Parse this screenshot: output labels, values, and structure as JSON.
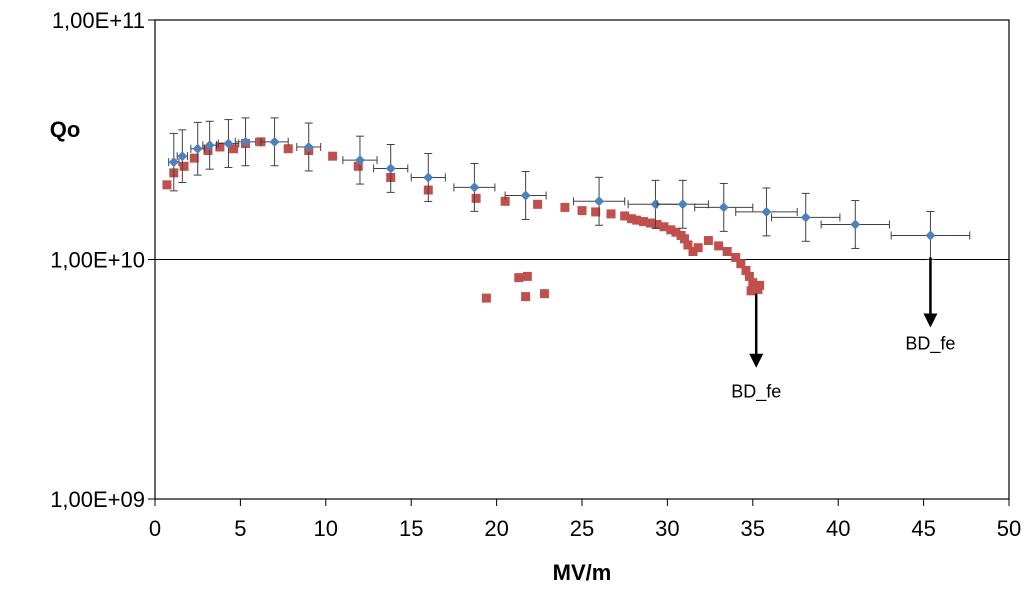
{
  "chart_data": {
    "type": "scatter",
    "xlabel": "MV/m",
    "ylabel": "Qo",
    "xlim": [
      0,
      50
    ],
    "ylim": [
      1000000000.0,
      100000000000.0
    ],
    "y_scale": "log",
    "x_ticks": [
      0,
      5,
      10,
      15,
      20,
      25,
      30,
      35,
      40,
      45,
      50
    ],
    "y_ticks": [
      1000000000.0,
      10000000000.0,
      100000000000.0
    ],
    "y_tick_labels": [
      "1,00E+09",
      "1,00E+10",
      "1,00E+11"
    ],
    "reference_line_y": 10000000000.0,
    "grid": false,
    "legend": "none",
    "series": [
      {
        "marker": "square",
        "color": "#c0504d",
        "x": [
          0.7,
          1.1,
          1.7,
          2.3,
          3.1,
          3.8,
          4.6,
          5.3,
          6.2,
          7.8,
          9.0,
          10.4,
          11.9,
          13.8,
          16.0,
          18.8,
          19.4,
          20.5,
          21.3,
          21.8,
          21.7,
          22.4,
          22.8,
          24.0,
          25.0,
          25.8,
          26.7,
          27.5,
          27.9,
          28.2,
          28.6,
          29.0,
          29.4,
          29.8,
          30.2,
          30.5,
          30.8,
          31.0,
          31.2,
          31.5,
          31.8,
          32.4,
          33.0,
          33.5,
          34.0,
          34.3,
          34.6,
          34.8,
          35.0,
          35.2,
          35.4,
          34.9,
          35.3
        ],
        "y": [
          20500000000.0,
          23000000000.0,
          24500000000.0,
          26500000000.0,
          28500000000.0,
          29500000000.0,
          29000000000.0,
          30500000000.0,
          31000000000.0,
          29000000000.0,
          28500000000.0,
          27000000000.0,
          24500000000.0,
          22000000000.0,
          19500000000.0,
          18000000000.0,
          6900000000.0,
          17500000000.0,
          8400000000.0,
          8500000000.0,
          7000000000.0,
          17000000000.0,
          7200000000.0,
          16500000000.0,
          16000000000.0,
          15800000000.0,
          15500000000.0,
          15200000000.0,
          14800000000.0,
          14600000000.0,
          14400000000.0,
          14200000000.0,
          14000000000.0,
          13700000000.0,
          13300000000.0,
          13000000000.0,
          12600000000.0,
          12200000000.0,
          11500000000.0,
          10800000000.0,
          11200000000.0,
          12000000000.0,
          11400000000.0,
          10800000000.0,
          10200000000.0,
          9600000000.0,
          9000000000.0,
          8500000000.0,
          8000000000.0,
          7600000000.0,
          7800000000.0,
          7400000000.0,
          7500000000.0
        ]
      },
      {
        "marker": "diamond",
        "color": "#4f81bd",
        "error_bar_color": "#404040",
        "x": [
          1.1,
          1.6,
          2.5,
          3.2,
          4.3,
          5.3,
          7.0,
          9.0,
          12.0,
          13.8,
          16.0,
          18.7,
          21.7,
          26.0,
          29.3,
          30.9,
          33.3,
          35.8,
          38.1,
          41.0,
          45.4
        ],
        "y": [
          25500000000.0,
          27000000000.0,
          29000000000.0,
          30000000000.0,
          30500000000.0,
          31000000000.0,
          31000000000.0,
          29500000000.0,
          26000000000.0,
          24000000000.0,
          22000000000.0,
          20000000000.0,
          18500000000.0,
          17500000000.0,
          17000000000.0,
          17000000000.0,
          16500000000.0,
          15800000000.0,
          15000000000.0,
          14000000000.0,
          12600000000.0
        ],
        "x_err": [
          0.3,
          0.3,
          0.4,
          0.4,
          0.6,
          0.6,
          0.8,
          0.7,
          1.0,
          1.0,
          1.0,
          1.2,
          1.2,
          1.5,
          1.6,
          1.5,
          1.7,
          1.8,
          2.0,
          2.0,
          2.3
        ],
        "y_err": [
          0.12,
          0.11,
          0.11,
          0.1,
          0.1,
          0.1,
          0.1,
          0.1,
          0.1,
          0.1,
          0.1,
          0.1,
          0.1,
          0.1,
          0.1,
          0.1,
          0.1,
          0.1,
          0.1,
          0.1,
          0.1
        ]
      }
    ],
    "annotations": [
      {
        "text": "BD_fe",
        "arrow_from": [
          35.2,
          7200000000.0
        ],
        "arrow_to": [
          35.2,
          3600000000.0
        ],
        "label_at": [
          35.2,
          2650000000.0
        ]
      },
      {
        "text": "BD_fe",
        "arrow_from": [
          45.4,
          10200000000.0
        ],
        "arrow_to": [
          45.4,
          5300000000.0
        ],
        "label_at": [
          45.4,
          4200000000.0
        ]
      }
    ]
  }
}
